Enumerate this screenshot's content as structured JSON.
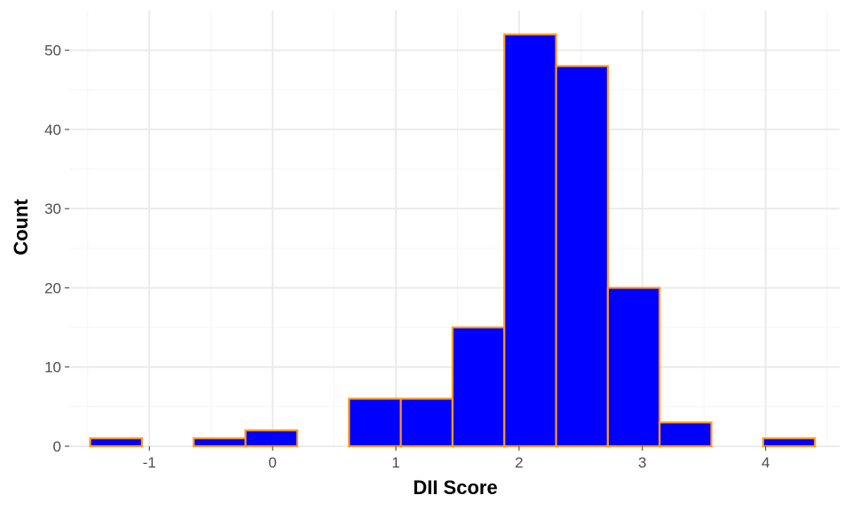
{
  "chart_data": {
    "type": "bar",
    "subtype": "histogram",
    "title": "",
    "xlabel": "DII Score",
    "ylabel": "Count",
    "xlim": [
      -1.65,
      4.6
    ],
    "ylim": [
      0,
      55
    ],
    "x_ticks": [
      -1,
      0,
      1,
      2,
      3,
      4
    ],
    "y_ticks": [
      0,
      10,
      20,
      30,
      40,
      50
    ],
    "grid": true,
    "legend": "none",
    "bin_width": 0.42,
    "bins": [
      {
        "start": -1.48,
        "end": -1.06,
        "count": 1
      },
      {
        "start": -1.06,
        "end": -0.64,
        "count": 0
      },
      {
        "start": -0.64,
        "end": -0.22,
        "count": 1
      },
      {
        "start": -0.22,
        "end": 0.2,
        "count": 2
      },
      {
        "start": 0.2,
        "end": 0.62,
        "count": 0
      },
      {
        "start": 0.62,
        "end": 1.04,
        "count": 6
      },
      {
        "start": 1.04,
        "end": 1.46,
        "count": 6
      },
      {
        "start": 1.46,
        "end": 1.88,
        "count": 15
      },
      {
        "start": 1.88,
        "end": 2.3,
        "count": 52
      },
      {
        "start": 2.3,
        "end": 2.72,
        "count": 48
      },
      {
        "start": 2.72,
        "end": 3.14,
        "count": 20
      },
      {
        "start": 3.14,
        "end": 3.56,
        "count": 3
      },
      {
        "start": 3.56,
        "end": 3.98,
        "count": 0
      },
      {
        "start": 3.98,
        "end": 4.4,
        "count": 1
      }
    ],
    "colors": {
      "fill": "#0000ff",
      "outline": "#ff9a1f",
      "grid_major": "#ebebeb",
      "grid_minor": "#f5f5f5",
      "tick_text": "#4d4d4d",
      "title_text": "#000000"
    }
  }
}
